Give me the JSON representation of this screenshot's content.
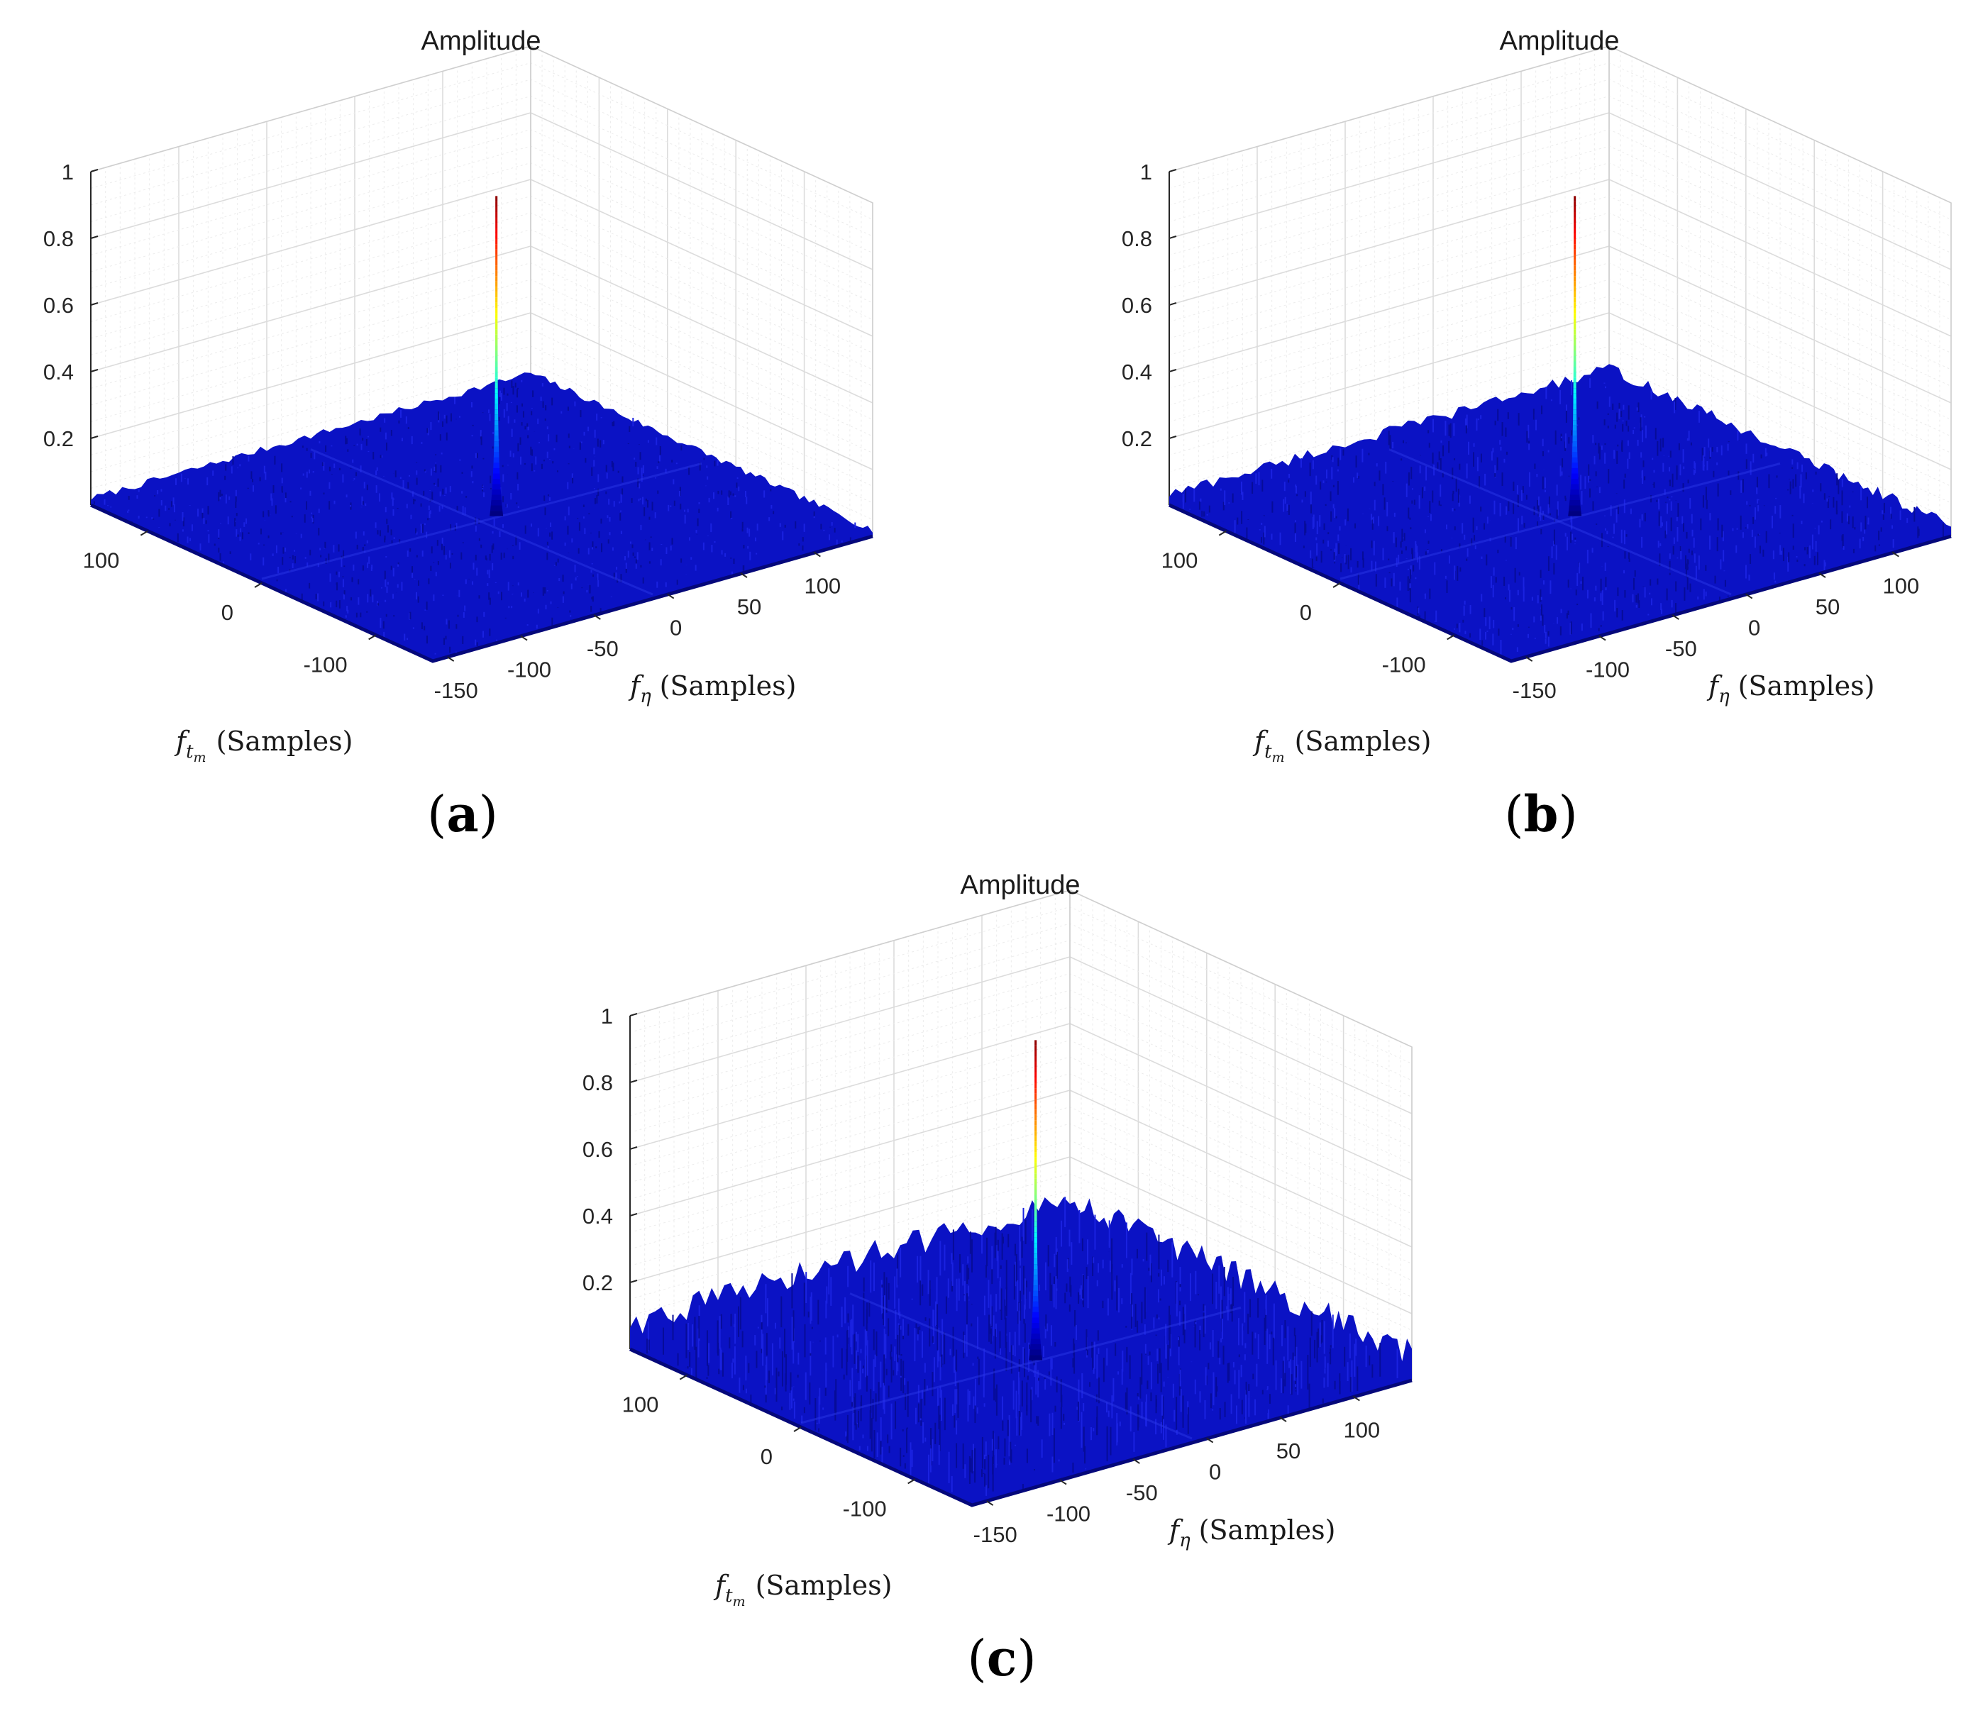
{
  "chart_data": [
    {
      "type": "surface",
      "panel_label": "a",
      "title": "Amplitude",
      "xlabel": {
        "symbol": "f",
        "subscript": "t",
        "subsubscript": "m",
        "text": "(Samples)"
      },
      "ylabel": {
        "symbol": "f",
        "subscript": "η",
        "text": "(Samples)"
      },
      "zlabel": "",
      "x_ticks": [
        100,
        0,
        -100
      ],
      "y_ticks": [
        -150,
        -100,
        -50,
        0,
        50,
        100
      ],
      "z_ticks": [
        0.2,
        0.4,
        0.6,
        0.8,
        1
      ],
      "xlim": [
        -150,
        150
      ],
      "ylim": [
        -160,
        140
      ],
      "zlim": [
        0,
        1
      ],
      "grid": true,
      "colormap": "jet",
      "peak": {
        "x": 0,
        "y": 0,
        "z": 0.96
      },
      "noise_floor_max": 0.03
    },
    {
      "type": "surface",
      "panel_label": "b",
      "title": "Amplitude",
      "xlabel": {
        "symbol": "f",
        "subscript": "t",
        "subsubscript": "m",
        "text": "(Samples)"
      },
      "ylabel": {
        "symbol": "f",
        "subscript": "η",
        "text": "(Samples)"
      },
      "zlabel": "",
      "x_ticks": [
        100,
        0,
        -100
      ],
      "y_ticks": [
        -150,
        -100,
        -50,
        0,
        50,
        100
      ],
      "z_ticks": [
        0.2,
        0.4,
        0.6,
        0.8,
        1
      ],
      "xlim": [
        -150,
        150
      ],
      "ylim": [
        -160,
        140
      ],
      "zlim": [
        0,
        1
      ],
      "grid": true,
      "colormap": "jet",
      "peak": {
        "x": 0,
        "y": 0,
        "z": 0.96
      },
      "noise_floor_max": 0.05
    },
    {
      "type": "surface",
      "panel_label": "c",
      "title": "Amplitude",
      "xlabel": {
        "symbol": "f",
        "subscript": "t",
        "subsubscript": "m",
        "text": "(Samples)"
      },
      "ylabel": {
        "symbol": "f",
        "subscript": "η",
        "text": "(Samples)"
      },
      "zlabel": "",
      "x_ticks": [
        100,
        0,
        -100
      ],
      "y_ticks": [
        -150,
        -100,
        -50,
        0,
        50,
        100
      ],
      "z_ticks": [
        0.2,
        0.4,
        0.6,
        0.8,
        1
      ],
      "xlim": [
        -150,
        150
      ],
      "ylim": [
        -160,
        140
      ],
      "zlim": [
        0,
        1
      ],
      "grid": true,
      "colormap": "jet",
      "peak": {
        "x": 0,
        "y": 0,
        "z": 0.96
      },
      "noise_floor_max": 0.12
    }
  ]
}
